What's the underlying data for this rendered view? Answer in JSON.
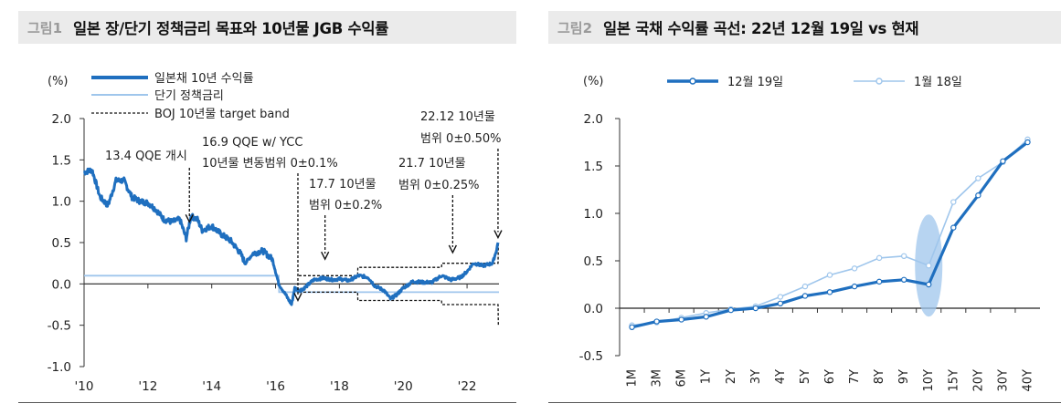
{
  "left": {
    "fig_label": "그림1",
    "title": "일본 장/단기 정책금리 목표와 10년물 JGB 수익률",
    "chart_data": {
      "type": "line",
      "title": "일본 장/단기 정책금리 목표와 10년물 JGB 수익률",
      "y_unit": "(%)",
      "ylim": [
        -1.0,
        2.0
      ],
      "y_ticks": [
        2.0,
        1.5,
        1.0,
        0.5,
        0.0,
        -0.5,
        -1.0
      ],
      "y_tick_labels": [
        "2.0",
        "1.5",
        "1.0",
        "0.5",
        "0.0",
        "-0.5",
        "-1.0"
      ],
      "x_range": [
        2010.0,
        2023.0
      ],
      "x_ticks": [
        2010,
        2012,
        2014,
        2016,
        2018,
        2020,
        2022
      ],
      "x_tick_labels": [
        "'10",
        "'12",
        "'14",
        "'16",
        "'18",
        "'20",
        "'22"
      ],
      "legend": [
        "일본채 10년 수익률",
        "단기 정책금리",
        "BOJ 10년물 target band"
      ],
      "series": [
        {
          "name": "일본채 10년 수익률",
          "x": [
            2010.0,
            2010.25,
            2010.5,
            2010.75,
            2011.0,
            2011.25,
            2011.5,
            2011.75,
            2012.0,
            2012.25,
            2012.5,
            2012.75,
            2013.0,
            2013.2,
            2013.35,
            2013.45,
            2013.55,
            2013.7,
            2014.0,
            2014.3,
            2014.6,
            2014.9,
            2015.05,
            2015.3,
            2015.6,
            2015.9,
            2016.1,
            2016.3,
            2016.5,
            2016.6,
            2016.75,
            2016.9,
            2017.2,
            2017.5,
            2017.8,
            2018.0,
            2018.3,
            2018.6,
            2018.9,
            2019.1,
            2019.4,
            2019.6,
            2019.8,
            2020.0,
            2020.3,
            2020.6,
            2020.9,
            2021.2,
            2021.5,
            2021.8,
            2022.0,
            2022.2,
            2022.5,
            2022.8,
            2022.93,
            2022.97
          ],
          "y": [
            1.35,
            1.38,
            1.05,
            0.95,
            1.25,
            1.25,
            1.05,
            1.0,
            0.98,
            0.9,
            0.78,
            0.75,
            0.78,
            0.55,
            0.82,
            0.8,
            0.78,
            0.65,
            0.7,
            0.6,
            0.52,
            0.37,
            0.25,
            0.37,
            0.4,
            0.3,
            0.0,
            -0.12,
            -0.25,
            -0.05,
            -0.08,
            -0.05,
            0.05,
            0.07,
            0.05,
            0.06,
            0.04,
            0.1,
            0.08,
            -0.02,
            -0.08,
            -0.18,
            -0.13,
            -0.05,
            0.03,
            0.02,
            0.02,
            0.1,
            0.05,
            0.08,
            0.15,
            0.25,
            0.22,
            0.25,
            0.42,
            0.5
          ]
        },
        {
          "name": "단기 정책금리",
          "x": [
            2010.0,
            2016.1,
            2016.11,
            2023.0
          ],
          "y": [
            0.1,
            0.1,
            -0.1,
            -0.1
          ]
        },
        {
          "name": "BOJ 10년물 target band",
          "upper_x": [
            2016.73,
            2018.57,
            2018.58,
            2021.2,
            2021.21,
            2022.97,
            2022.98
          ],
          "upper_y": [
            0.1,
            0.1,
            0.2,
            0.2,
            0.25,
            0.25,
            0.5
          ],
          "lower_x": [
            2016.73,
            2018.57,
            2018.58,
            2021.2,
            2021.21,
            2022.97,
            2022.98
          ],
          "lower_y": [
            -0.1,
            -0.1,
            -0.2,
            -0.2,
            -0.25,
            -0.25,
            -0.5
          ]
        }
      ],
      "annotations": [
        {
          "lines": [
            "13.4  QQE 개시"
          ],
          "x": 2013.3
        },
        {
          "lines": [
            "16.9 QQE w/ YCC",
            "10년물  변동범위  0±0.1%"
          ],
          "x": 2016.7
        },
        {
          "lines": [
            "17.7  10년물",
            "범위  0±0.2%"
          ],
          "x": 2017.55
        },
        {
          "lines": [
            "21.7  10년물",
            "범위  0±0.25%"
          ],
          "x": 2021.55
        },
        {
          "lines": [
            "22.12  10년물",
            "범위  0±0.50%"
          ],
          "x": 2022.97
        }
      ]
    }
  },
  "right": {
    "fig_label": "그림2",
    "title": "일본 국채 수익률 곡선: 22년 12월 19일 vs 현재",
    "chart_data": {
      "type": "line",
      "title": "일본 국채 수익률 곡선: 22년 12월 19일 vs 현재",
      "y_unit": "(%)",
      "ylim": [
        -0.5,
        2.0
      ],
      "y_ticks": [
        2.0,
        1.5,
        1.0,
        0.5,
        0.0,
        -0.5
      ],
      "y_tick_labels": [
        "2.0",
        "1.5",
        "1.0",
        "0.5",
        "0.0",
        "-0.5"
      ],
      "categories": [
        "1M",
        "3M",
        "6M",
        "1Y",
        "2Y",
        "3Y",
        "4Y",
        "5Y",
        "6Y",
        "7Y",
        "8Y",
        "9Y",
        "10Y",
        "15Y",
        "20Y",
        "30Y",
        "40Y"
      ],
      "series": [
        {
          "name": "12월 19일",
          "color": "#1f6fbf",
          "values": [
            -0.2,
            -0.14,
            -0.12,
            -0.09,
            -0.02,
            0.0,
            0.05,
            0.13,
            0.17,
            0.23,
            0.28,
            0.3,
            0.25,
            0.85,
            1.19,
            1.55,
            1.75
          ]
        },
        {
          "name": "1월 18일",
          "color": "#9fc6ec",
          "values": [
            -0.18,
            -0.15,
            -0.1,
            -0.05,
            -0.01,
            0.02,
            0.12,
            0.23,
            0.35,
            0.42,
            0.53,
            0.55,
            0.45,
            1.12,
            1.37,
            1.54,
            1.78
          ]
        }
      ],
      "highlight_category": "10Y"
    }
  }
}
